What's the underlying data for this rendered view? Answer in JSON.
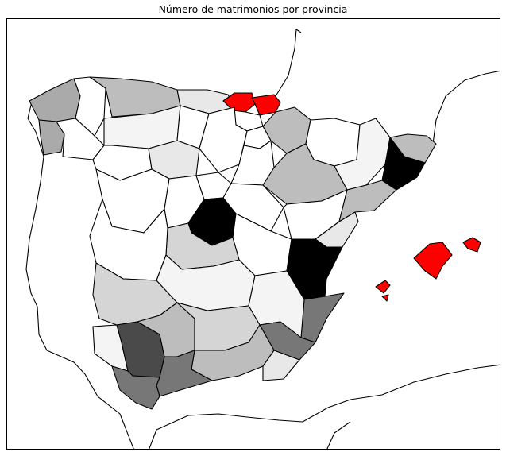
{
  "title": "Número de matrimonios por provincia",
  "colors": {
    "highlight": "#ff0000",
    "max": "#000000",
    "level_7": "#4a4a4a",
    "level_6": "#777777",
    "level_5": "#aaaaaa",
    "level_4": "#bdbdbd",
    "level_3": "#d5d5d5",
    "level_2": "#e8e8e8",
    "level_1": "#f4f4f4",
    "level_0": "#ffffff"
  },
  "map": {
    "region": "Spain and surrounding coastline",
    "highlighted_regions": [
      "Gipuzkoa",
      "Bizkaia",
      "Illes Balears"
    ],
    "darkest_regions": [
      "Madrid",
      "Barcelona",
      "Valencia"
    ]
  }
}
